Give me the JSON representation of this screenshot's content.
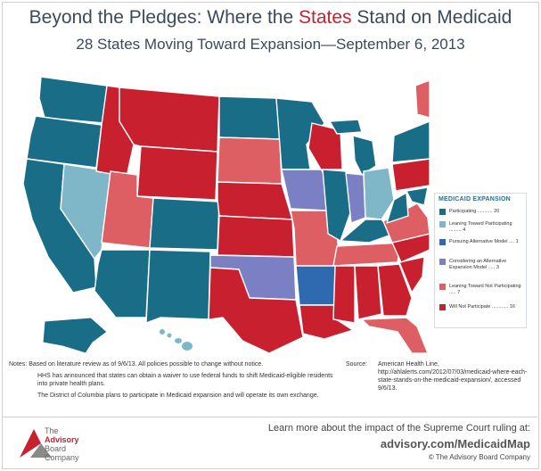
{
  "header": {
    "title_pre": "Beyond the Pledges: Where the ",
    "title_highlight": "States",
    "title_post": " Stand on Medicaid",
    "subtitle": "28 States Moving Toward Expansion—September 6, 2013"
  },
  "colors": {
    "participating": "#1a6d86",
    "leaning_toward_participating": "#7fb7c8",
    "pursuing_alternative": "#2f69b0",
    "considering_alternative": "#7b7fc4",
    "leaning_not_participating": "#dd5f63",
    "will_not_participate": "#c8202f"
  },
  "legend": {
    "title": "MEDICAID EXPANSION",
    "items": [
      {
        "label": "Participating ........... 20"
      },
      {
        "label": "Leaning Toward Participating ......... 4"
      },
      {
        "label": "Pursuing Alternative Model .... 1"
      },
      {
        "label": "Considering an Alternative Expansion Model ..... 3"
      },
      {
        "label": "Leaning Toward Not Participating ..... 7"
      },
      {
        "label": "Will Not Participate ............ 16"
      }
    ]
  },
  "notes": {
    "label": "Notes:",
    "lines": [
      "Based on literature review as of 9/6/13. All policies possible to change without notice.",
      "HHS has announced that states can obtain a waiver to use federal funds to shift Medicaid-eligible residents into private health plans.",
      "The District of Columbia plans to participate in Medicaid expansion and will operate its own exchange."
    ]
  },
  "source": {
    "label": "Source:",
    "text": "American Health Line, http://ahlalerts.com/2012/07/03/medicaid-where-each-state-stands-on-the-medicaid-expansion/, accessed 9/6/13."
  },
  "footer": {
    "logo_line1": "The",
    "logo_line2": "Advisory",
    "logo_line3": "Board",
    "logo_line4": "Company",
    "cta_line1": "Learn more about the impact of the Supreme Court ruling at:",
    "cta_line2": "advisory.com/MedicaidMap",
    "copyright": "© The Advisory Board Company"
  }
}
